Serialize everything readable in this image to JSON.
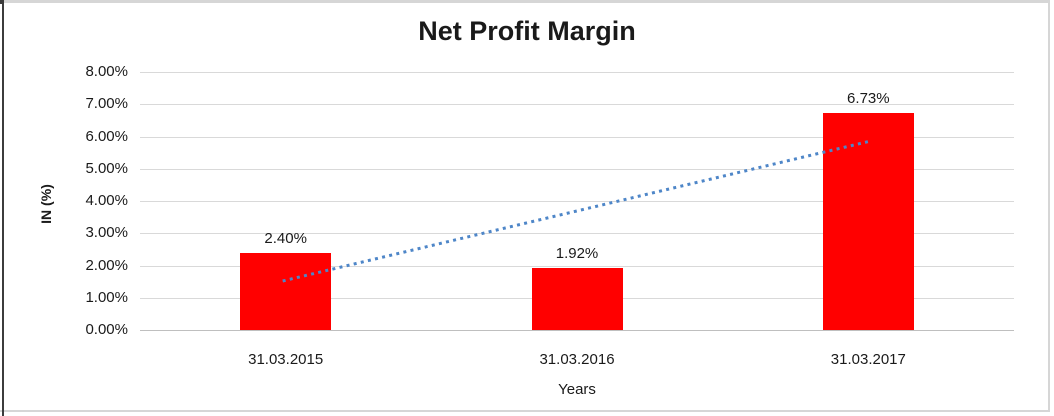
{
  "chart_data": {
    "type": "bar",
    "title": "Net Profit Margin",
    "categories": [
      "31.03.2015",
      "31.03.2016",
      "31.03.2017"
    ],
    "values": [
      2.4,
      1.92,
      6.73
    ],
    "data_labels": [
      "2.40%",
      "1.92%",
      "6.73%"
    ],
    "xlabel": "Years",
    "ylabel": "IN (%)",
    "ylim": [
      0,
      8
    ],
    "ytick_labels": [
      "0.00%",
      "1.00%",
      "2.00%",
      "3.00%",
      "4.00%",
      "5.00%",
      "6.00%",
      "7.00%",
      "8.00%"
    ],
    "grid": true,
    "legend": "none",
    "bar_color": "#ff0000",
    "gridline_color": "#d9d9d9",
    "baseline_color": "#bfbfbf",
    "text_color": "#1a1a1a",
    "trendline": {
      "type": "linear",
      "style": "dotted",
      "color": "#4e86c8",
      "start_category_index": 0,
      "end_category_index": 2,
      "start_value": 1.52,
      "end_value": 5.85
    }
  },
  "frame": {
    "background": "#ffffff",
    "border_color": "#d6d6d6",
    "left_edge_color": "#3c3c3c"
  }
}
